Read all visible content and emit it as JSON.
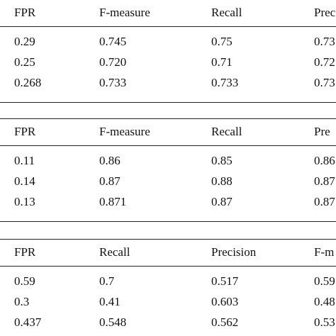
{
  "tables": [
    {
      "header": [
        "FPR",
        "F-measure",
        "Recall",
        "Prec"
      ],
      "rows": [
        [
          "0.29",
          "0.745",
          "0.75",
          "0.73"
        ],
        [
          "0.25",
          "0.720",
          "0.71",
          "0.72"
        ],
        [
          "0.268",
          "0.733",
          "0.733",
          "0.73"
        ]
      ]
    },
    {
      "header": [
        "FPR",
        "F-measure",
        "Recall",
        "Pre"
      ],
      "rows": [
        [
          "0.11",
          "0.86",
          "0.85",
          "0.86"
        ],
        [
          "0.14",
          "0.87",
          "0.88",
          "0.87"
        ],
        [
          "0.13",
          "0.871",
          "0.87",
          "0.87"
        ]
      ]
    },
    {
      "header": [
        "FPR",
        "Recall",
        "Precision",
        "F-m"
      ],
      "rows": [
        [
          "0.59",
          "0.7",
          "0.517",
          "0.59"
        ],
        [
          "0.3",
          "0.41",
          "0.603",
          "0.48"
        ],
        [
          "0.437",
          "0.548",
          "0.562",
          "0.53"
        ]
      ]
    }
  ]
}
